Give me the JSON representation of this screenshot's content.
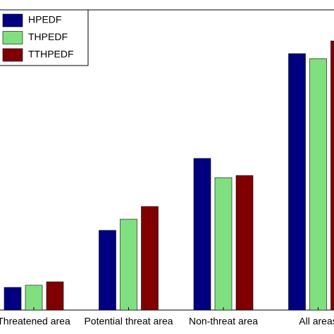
{
  "chart_data": {
    "type": "bar",
    "categories": [
      "Threatened area",
      "Potential threat area",
      "Non-threat area",
      "All areas"
    ],
    "series": [
      {
        "name": "HPEDF",
        "color": "#000080",
        "values": [
          7.3,
          25.7,
          48.9,
          82.7
        ]
      },
      {
        "name": "THPEDF",
        "color": "#80e080",
        "values": [
          8.0,
          29.3,
          42.7,
          81.1
        ]
      },
      {
        "name": "TTHPEDF",
        "color": "#800000",
        "values": [
          9.1,
          33.4,
          43.4,
          86.8
        ]
      }
    ],
    "ylim": [
      0,
      100
    ],
    "legend": "upper left"
  }
}
